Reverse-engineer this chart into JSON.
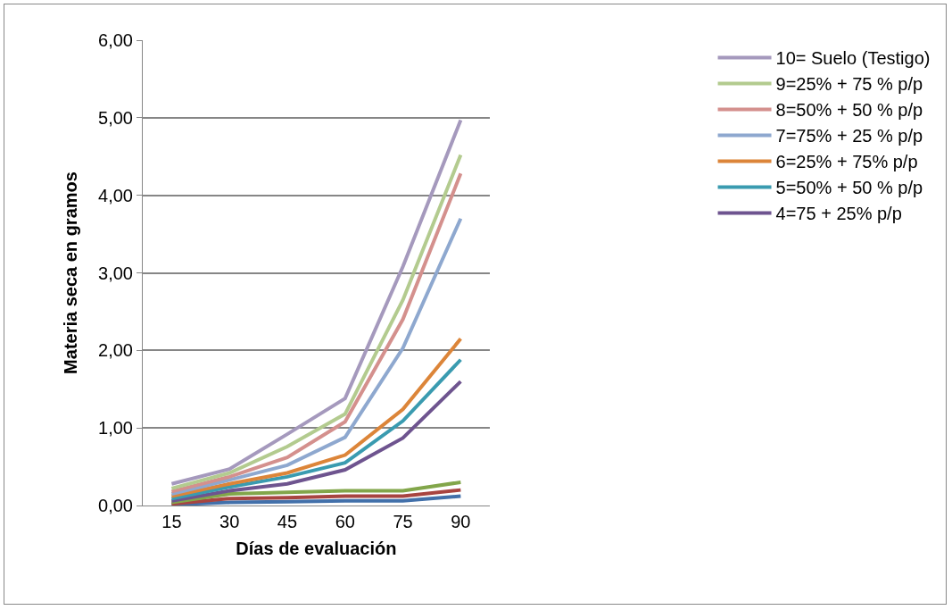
{
  "chart_data": {
    "type": "line",
    "xlabel": "Días de evaluación",
    "ylabel": "Materia seca en gramos",
    "categories": [
      "15",
      "30",
      "45",
      "60",
      "75",
      "90"
    ],
    "ylim": [
      0,
      6
    ],
    "yticks": [
      {
        "value": 0,
        "label": "0,00"
      },
      {
        "value": 1,
        "label": "1,00"
      },
      {
        "value": 2,
        "label": "2,00"
      },
      {
        "value": 3,
        "label": "3,00"
      },
      {
        "value": 4,
        "label": "4,00"
      },
      {
        "value": 5,
        "label": "5,00"
      },
      {
        "value": 6,
        "label": "6,00"
      }
    ],
    "grid": "y",
    "legend": "right",
    "marker": "none",
    "line_style": "solid",
    "series": [
      {
        "name": "10= Suelo (Testigo)",
        "color": "#a599bd",
        "values": [
          0.28,
          0.47,
          0.92,
          1.38,
          3.08,
          4.97
        ]
      },
      {
        "name": "9=25% + 75 % p/p",
        "color": "#b3cb8f",
        "values": [
          0.22,
          0.42,
          0.76,
          1.18,
          2.65,
          4.52
        ]
      },
      {
        "name": "8=50% + 50 % p/p",
        "color": "#d4908d",
        "values": [
          0.18,
          0.37,
          0.62,
          1.08,
          2.4,
          4.28
        ]
      },
      {
        "name": "7=75% + 25 % p/p",
        "color": "#8ea8cf",
        "values": [
          0.15,
          0.33,
          0.52,
          0.88,
          2.03,
          3.7
        ]
      },
      {
        "name": "6=25% + 75% p/p",
        "color": "#dc8539",
        "values": [
          0.12,
          0.28,
          0.42,
          0.65,
          1.24,
          2.15
        ]
      },
      {
        "name": "5=50% + 50 % p/p",
        "color": "#3a9bb0",
        "values": [
          0.09,
          0.24,
          0.37,
          0.55,
          1.09,
          1.88
        ]
      },
      {
        "name": "4=75 + 25% p/p",
        "color": "#6e548f",
        "values": [
          0.06,
          0.19,
          0.28,
          0.46,
          0.87,
          1.6
        ]
      },
      {
        "color": "#82a64a",
        "values": [
          0.04,
          0.15,
          0.17,
          0.19,
          0.19,
          0.3
        ]
      },
      {
        "color": "#a84440",
        "values": [
          0.02,
          0.09,
          0.1,
          0.12,
          0.12,
          0.2
        ]
      },
      {
        "color": "#4270aa",
        "values": [
          0.01,
          0.04,
          0.05,
          0.06,
          0.06,
          0.12
        ]
      }
    ]
  }
}
